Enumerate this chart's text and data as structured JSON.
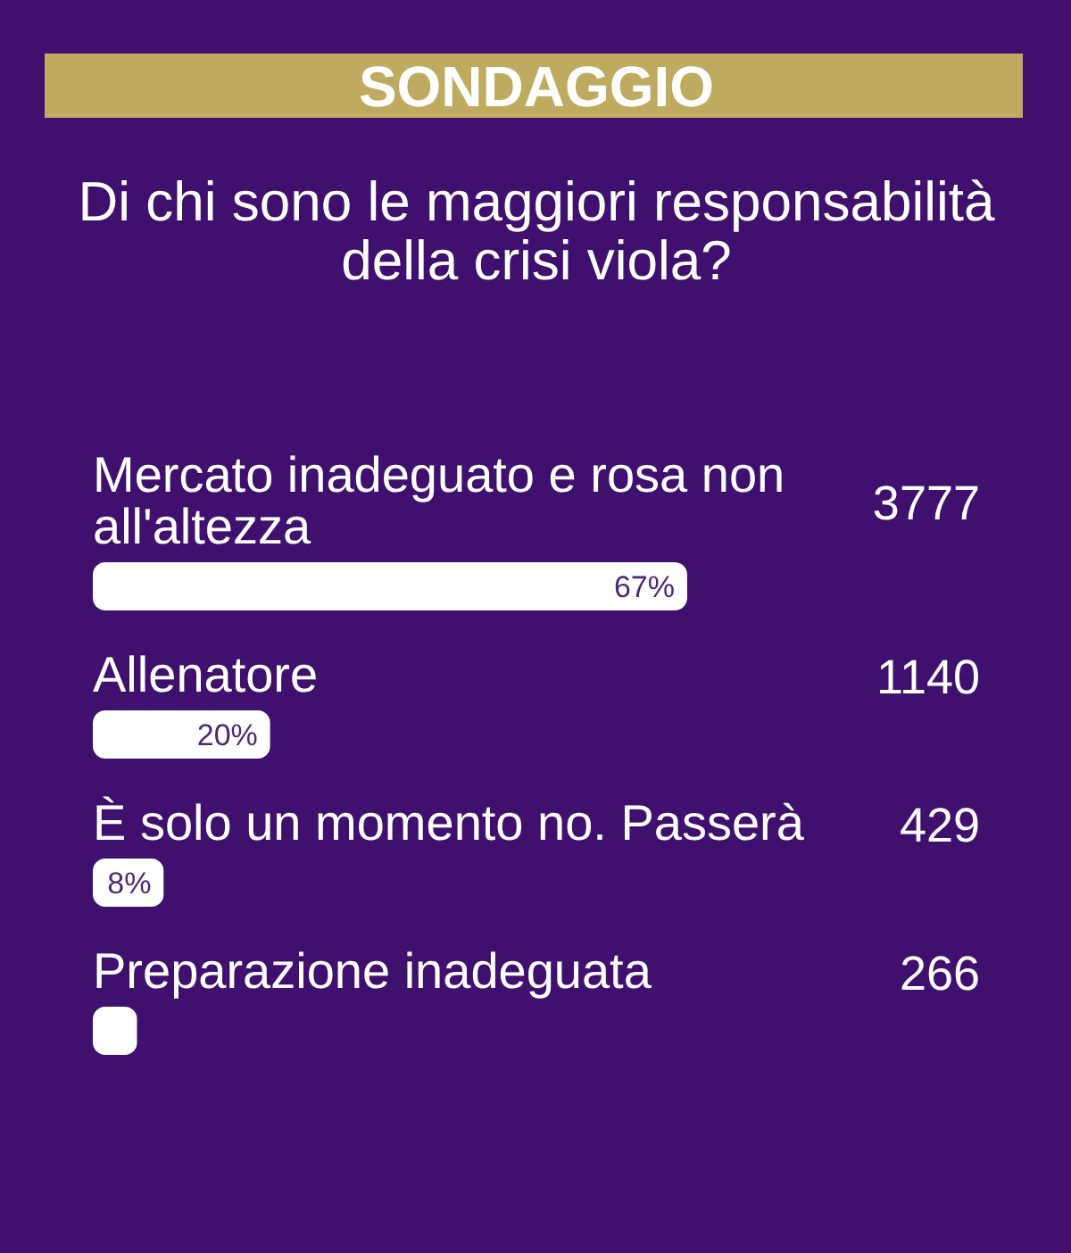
{
  "chart_data": {
    "type": "bar",
    "orientation": "horizontal",
    "title": "SONDAGGIO",
    "subtitle": "Di chi sono le maggiori responsabilità della crisi viola?",
    "categories": [
      "Mercato inadeguato e rosa non all'altezza",
      "Allenatore",
      "È solo un momento no. Passerà",
      "Preparazione inadeguata"
    ],
    "values": [
      67,
      20,
      8,
      5
    ],
    "value_labels": [
      "67%",
      "20%",
      "8%",
      null
    ],
    "color": "#ffffff",
    "annotations": [
      "3777",
      "1140",
      "429",
      "266"
    ]
  }
}
